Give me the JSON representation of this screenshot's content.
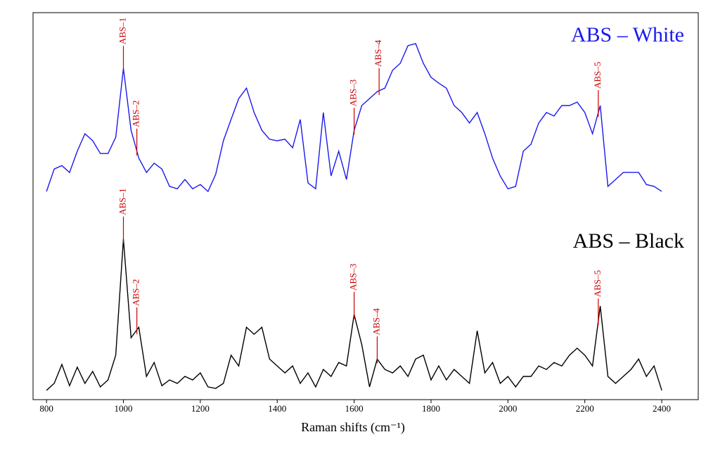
{
  "chart_data": {
    "type": "line",
    "xlabel": "Raman shifts (cm⁻¹)",
    "xlim": [
      765,
      2495
    ],
    "ylim": [
      0,
      100
    ],
    "xticks": [
      800,
      1000,
      1200,
      1400,
      1600,
      1800,
      2000,
      2200,
      2400
    ],
    "annotation_color": "#cc0000",
    "x": [
      800,
      820,
      840,
      860,
      880,
      900,
      920,
      940,
      960,
      980,
      1000,
      1020,
      1040,
      1060,
      1080,
      1100,
      1120,
      1140,
      1160,
      1180,
      1200,
      1220,
      1240,
      1260,
      1280,
      1300,
      1320,
      1340,
      1360,
      1380,
      1400,
      1420,
      1440,
      1460,
      1480,
      1500,
      1520,
      1540,
      1560,
      1580,
      1600,
      1620,
      1640,
      1660,
      1680,
      1700,
      1720,
      1740,
      1760,
      1780,
      1800,
      1820,
      1840,
      1860,
      1880,
      1900,
      1920,
      1940,
      1960,
      1980,
      2000,
      2020,
      2040,
      2060,
      2080,
      2100,
      2120,
      2140,
      2160,
      2180,
      2200,
      2220,
      2240,
      2260,
      2280,
      2300,
      2320,
      2340,
      2360,
      2380,
      2400
    ],
    "series": [
      {
        "name": "ABS – White",
        "color": "#1a1aee",
        "values": [
          53.8,
          59.6,
          60.5,
          58.7,
          64.2,
          68.7,
          66.9,
          63.6,
          63.6,
          67.8,
          85.6,
          69.6,
          62.4,
          58.7,
          61.1,
          59.6,
          55.1,
          54.5,
          56.9,
          54.5,
          55.6,
          53.8,
          58.2,
          66.9,
          72.4,
          77.8,
          80.5,
          74.2,
          69.6,
          67.3,
          66.9,
          67.3,
          65.1,
          72.4,
          56,
          54.5,
          74.2,
          57.8,
          64.2,
          56.9,
          69.6,
          76,
          77.8,
          79.6,
          80.5,
          85.1,
          86.9,
          91.5,
          92,
          86.9,
          83.3,
          81.8,
          80.5,
          76,
          74.2,
          71.5,
          74.2,
          68.7,
          62.4,
          57.8,
          54.5,
          55.1,
          64.2,
          66,
          71.5,
          74.2,
          73.3,
          76,
          76,
          76.9,
          74.2,
          68.7,
          76,
          55.1,
          56.9,
          58.7,
          58.7,
          58.7,
          55.6,
          55.1,
          53.8
        ],
        "peaks": [
          {
            "label": "ABS–1",
            "x": 1000
          },
          {
            "label": "ABS–2",
            "x": 1035
          },
          {
            "label": "ABS–3",
            "x": 1600
          },
          {
            "label": "ABS–4",
            "x": 1665
          },
          {
            "label": "ABS–5",
            "x": 2235
          }
        ]
      },
      {
        "name": "ABS – Black",
        "color": "#000000",
        "values": [
          2.4,
          4.2,
          9.1,
          3.6,
          8.4,
          4.2,
          7.3,
          3.3,
          5.1,
          11.5,
          41.5,
          16,
          18.7,
          6,
          9.6,
          3.6,
          5.1,
          4.2,
          6,
          5.1,
          6.9,
          3.3,
          2.9,
          4.2,
          11.5,
          8.7,
          18.7,
          16.9,
          18.7,
          10.5,
          8.7,
          6.9,
          8.7,
          4.2,
          6.9,
          3.3,
          7.8,
          6,
          9.6,
          8.7,
          22,
          14.2,
          3.3,
          10.5,
          7.8,
          6.9,
          8.7,
          6,
          10.5,
          11.5,
          5.1,
          8.7,
          5.1,
          7.8,
          6,
          4.2,
          17.8,
          6.9,
          9.6,
          4.2,
          6,
          3.3,
          6,
          6,
          8.7,
          7.8,
          9.6,
          8.7,
          11.5,
          13.3,
          11.5,
          8.7,
          24.2,
          6,
          4.2,
          6,
          7.8,
          10.5,
          6,
          8.7,
          2.4
        ],
        "peaks": [
          {
            "label": "ABS–1",
            "x": 1000
          },
          {
            "label": "ABS–2",
            "x": 1035
          },
          {
            "label": "ABS–3",
            "x": 1600
          },
          {
            "label": "ABS–4",
            "x": 1660
          },
          {
            "label": "ABS–5",
            "x": 2235
          }
        ]
      }
    ]
  }
}
